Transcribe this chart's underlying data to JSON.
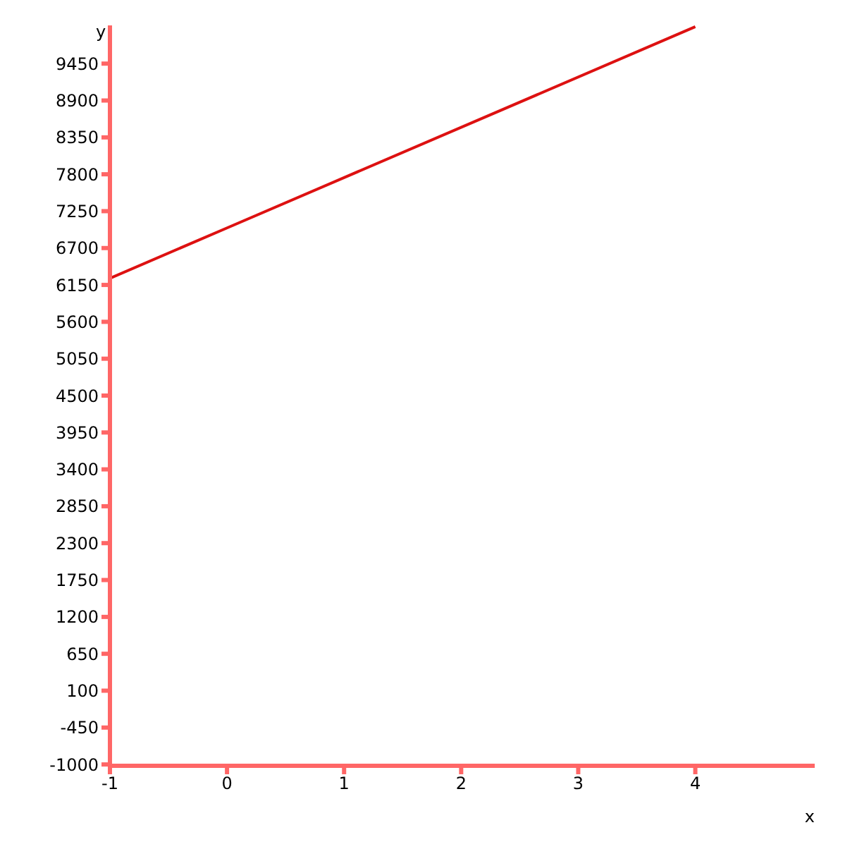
{
  "chart_data": {
    "type": "line",
    "xlabel": "x",
    "ylabel": "y",
    "x": [
      -1,
      0,
      4
    ],
    "series": [
      {
        "color": "#dd1111",
        "values": [
          6250,
          7000,
          10000
        ]
      }
    ],
    "xlim": [
      -1,
      5.02
    ],
    "xticks": [
      -1,
      0,
      1,
      2,
      3,
      4
    ],
    "ylim": [
      -1020,
      10020
    ],
    "yticks": [
      -1000,
      -450,
      100,
      650,
      1200,
      1750,
      2300,
      2850,
      3400,
      3950,
      4500,
      5050,
      5600,
      6150,
      6700,
      7250,
      7800,
      8350,
      8900,
      9450
    ],
    "grid": false,
    "legend": false,
    "marker": "none",
    "line_style": "solid"
  }
}
